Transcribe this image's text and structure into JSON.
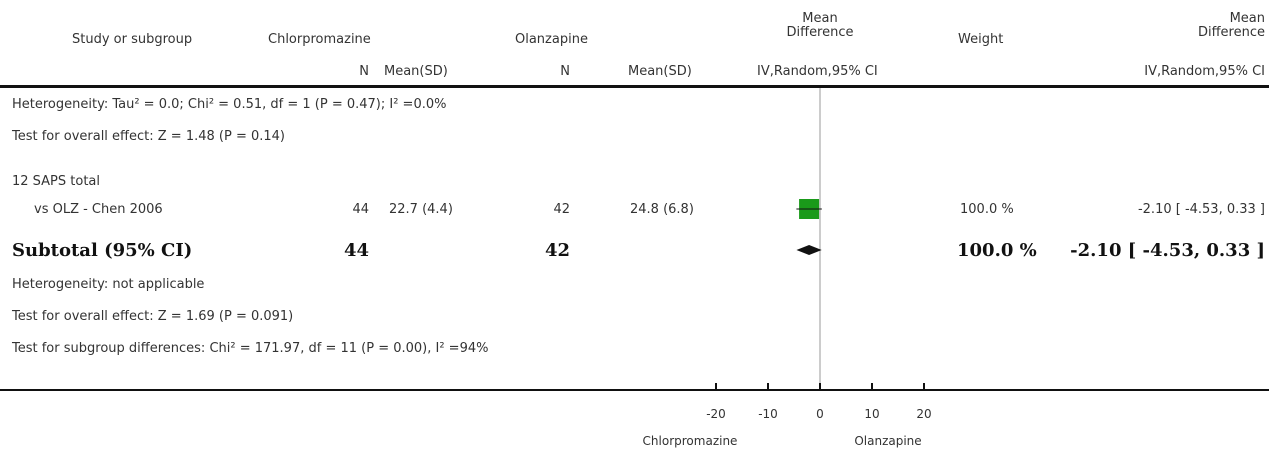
{
  "header": {
    "study": "Study or subgroup",
    "group1": "Chlorpromazine",
    "group2": "Olanzapine",
    "md_line1": "Mean",
    "md_line2": "Difference",
    "weight": "Weight",
    "md2_line1": "Mean",
    "md2_line2": "Difference",
    "n1": "N",
    "msd1": "Mean(SD)",
    "n2": "N",
    "msd2": "Mean(SD)",
    "ci_plot": "IV,Random,95% CI",
    "ci_text": "IV,Random,95% CI"
  },
  "top_notes": {
    "heterogeneity": "Heterogeneity: Tau² = 0.0; Chi² = 0.51, df = 1 (P = 0.47); I² =0.0%",
    "overall": "Test for overall effect: Z = 1.48 (P = 0.14)"
  },
  "subgroup": {
    "title": "12 SAPS total",
    "study": {
      "name": "vs OLZ - Chen 2006",
      "n1": "44",
      "msd1": "22.7 (4.4)",
      "n2": "42",
      "msd2": "24.8 (6.8)",
      "weight": "100.0 %",
      "ci": "-2.10 [ -4.53, 0.33 ]"
    },
    "subtotal": {
      "label": "Subtotal (95% CI)",
      "n1": "44",
      "n2": "42",
      "weight": "100.0 %",
      "ci": "-2.10 [ -4.53, 0.33 ]"
    },
    "heterogeneity": "Heterogeneity: not applicable",
    "overall": "Test for overall effect: Z = 1.69 (P = 0.091)",
    "subgroup_diff": "Test for subgroup differences: Chi² = 171.97, df = 11 (P = 0.00), I² =94%"
  },
  "axis": {
    "ticks": [
      "-20",
      "-10",
      "0",
      "10",
      "20"
    ],
    "left_label": "Chlorpromazine",
    "right_label": "Olanzapine"
  },
  "colors": {
    "study_box": "#1a9a1a",
    "line": "#111111",
    "null_line": "#999999"
  },
  "chart_data": {
    "type": "forest",
    "xlim": [
      -20,
      20
    ],
    "xticks": [
      -20,
      -10,
      0,
      10,
      20
    ],
    "xlabel_left": "Chlorpromazine",
    "xlabel_right": "Olanzapine",
    "studies": [
      {
        "name": "vs OLZ - Chen 2006",
        "md": -2.1,
        "lower": -4.53,
        "upper": 0.33,
        "weight": 100.0
      }
    ],
    "subtotal": {
      "md": -2.1,
      "lower": -4.53,
      "upper": 0.33
    }
  }
}
